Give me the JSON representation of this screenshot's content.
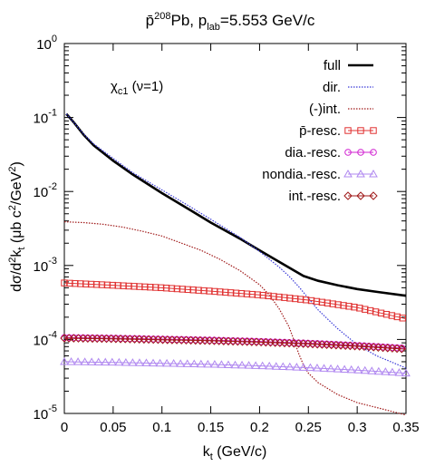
{
  "chart_data": {
    "type": "line",
    "title": {
      "prefix": "p̄",
      "sup": "208",
      "main": "Pb, p",
      "sub": "lab",
      "tail": "=5.553 GeV/c"
    },
    "annotation": {
      "main": "χ",
      "sub": "c1",
      "tail": " (ν=1)"
    },
    "xlabel": {
      "main": "k",
      "sub": "t",
      "tail": " (GeV/c)"
    },
    "ylabel": {
      "a": "dσ/d",
      "sup1": "2",
      "b": "k",
      "sub1": "t",
      "c": " (μb c",
      "sup2": "2",
      "d": "/GeV",
      "sup3": "2",
      "e": ")"
    },
    "x_ticks": [
      "0",
      "0.05",
      "0.1",
      "0.15",
      "0.2",
      "0.25",
      "0.3",
      "0.35"
    ],
    "x_tick_values": [
      0,
      0.05,
      0.1,
      0.15,
      0.2,
      0.25,
      0.3,
      0.35
    ],
    "y_ticks": [
      {
        "base": "10",
        "exp": "-5",
        "value": -5
      },
      {
        "base": "10",
        "exp": "-4",
        "value": -4
      },
      {
        "base": "10",
        "exp": "-3",
        "value": -3
      },
      {
        "base": "10",
        "exp": "-2",
        "value": -2
      },
      {
        "base": "10",
        "exp": "-1",
        "value": -1
      },
      {
        "base": "10",
        "exp": "0",
        "value": 0
      }
    ],
    "xlim": [
      0,
      0.35
    ],
    "ylim": [
      1e-05,
      1
    ],
    "yscale": "log",
    "legend_position": "top-right",
    "series": [
      {
        "name": "full",
        "color": "#000000",
        "style": "thick-solid",
        "marker": "none",
        "x": [
          0.002,
          0.01,
          0.02,
          0.03,
          0.05,
          0.07,
          0.1,
          0.13,
          0.15,
          0.18,
          0.2,
          0.22,
          0.245,
          0.26,
          0.28,
          0.3,
          0.32,
          0.35
        ],
        "y": [
          0.112,
          0.085,
          0.058,
          0.042,
          0.026,
          0.017,
          0.0095,
          0.0055,
          0.0038,
          0.0023,
          0.0016,
          0.00112,
          0.00072,
          0.00062,
          0.00054,
          0.00048,
          0.00044,
          0.00039
        ]
      },
      {
        "name": "dir.",
        "color": "#3a3ad8",
        "style": "dotted",
        "marker": "none",
        "x": [
          0.002,
          0.01,
          0.02,
          0.03,
          0.05,
          0.07,
          0.1,
          0.13,
          0.15,
          0.18,
          0.2,
          0.22,
          0.23,
          0.24,
          0.25,
          0.26,
          0.28,
          0.3,
          0.32,
          0.35
        ],
        "y": [
          0.112,
          0.085,
          0.059,
          0.044,
          0.028,
          0.018,
          0.0105,
          0.0061,
          0.0042,
          0.0024,
          0.00155,
          0.00095,
          0.00072,
          0.00052,
          0.00036,
          0.00025,
          0.00014,
          8.5e-05,
          6e-05,
          4.1e-05
        ]
      },
      {
        "name": "(-)int.",
        "color": "#a01a1a",
        "style": "dotted",
        "marker": "none",
        "x": [
          0.0,
          0.02,
          0.04,
          0.06,
          0.08,
          0.1,
          0.12,
          0.14,
          0.16,
          0.18,
          0.2,
          0.21,
          0.22,
          0.23,
          0.235,
          0.24,
          0.245,
          0.25,
          0.26,
          0.28,
          0.3,
          0.32,
          0.35
        ],
        "y": [
          0.0039,
          0.0038,
          0.0036,
          0.0033,
          0.0029,
          0.0025,
          0.002,
          0.0016,
          0.0012,
          0.00085,
          0.00055,
          0.0004,
          0.00026,
          0.00015,
          0.0001,
          6.5e-05,
          4.5e-05,
          3.5e-05,
          2.6e-05,
          1.8e-05,
          1.4e-05,
          1.2e-05,
          9.5e-06
        ]
      },
      {
        "name": "p̄-resc.",
        "color": "#e03030",
        "style": "solid",
        "marker": "square",
        "x": [
          0.0,
          0.05,
          0.1,
          0.15,
          0.2,
          0.25,
          0.3,
          0.35
        ],
        "y": [
          0.00058,
          0.00054,
          0.0005,
          0.00045,
          0.0004,
          0.00034,
          0.00027,
          0.00019
        ]
      },
      {
        "name": "dia.-resc.",
        "color": "#d020d0",
        "style": "solid",
        "marker": "circle",
        "x": [
          0.0,
          0.05,
          0.1,
          0.15,
          0.2,
          0.25,
          0.3,
          0.35
        ],
        "y": [
          0.000106,
          0.000104,
          0.000101,
          9.8e-05,
          9.4e-05,
          8.9e-05,
          8.3e-05,
          7.6e-05
        ]
      },
      {
        "name": "nondia.-resc.",
        "color": "#b088f0",
        "style": "solid",
        "marker": "triangle",
        "x": [
          0.0,
          0.05,
          0.1,
          0.15,
          0.2,
          0.25,
          0.3,
          0.35
        ],
        "y": [
          5e-05,
          4.9e-05,
          4.75e-05,
          4.6e-05,
          4.4e-05,
          4.15e-05,
          3.85e-05,
          3.5e-05
        ]
      },
      {
        "name": "int.-resc.",
        "color": "#a01a1a",
        "style": "solid",
        "marker": "diamond",
        "x": [
          0.0,
          0.05,
          0.1,
          0.15,
          0.2,
          0.25,
          0.3,
          0.35
        ],
        "y": [
          0.000104,
          0.000102,
          9.9e-05,
          9.6e-05,
          9.2e-05,
          8.7e-05,
          8.1e-05,
          7.4e-05
        ]
      }
    ]
  }
}
